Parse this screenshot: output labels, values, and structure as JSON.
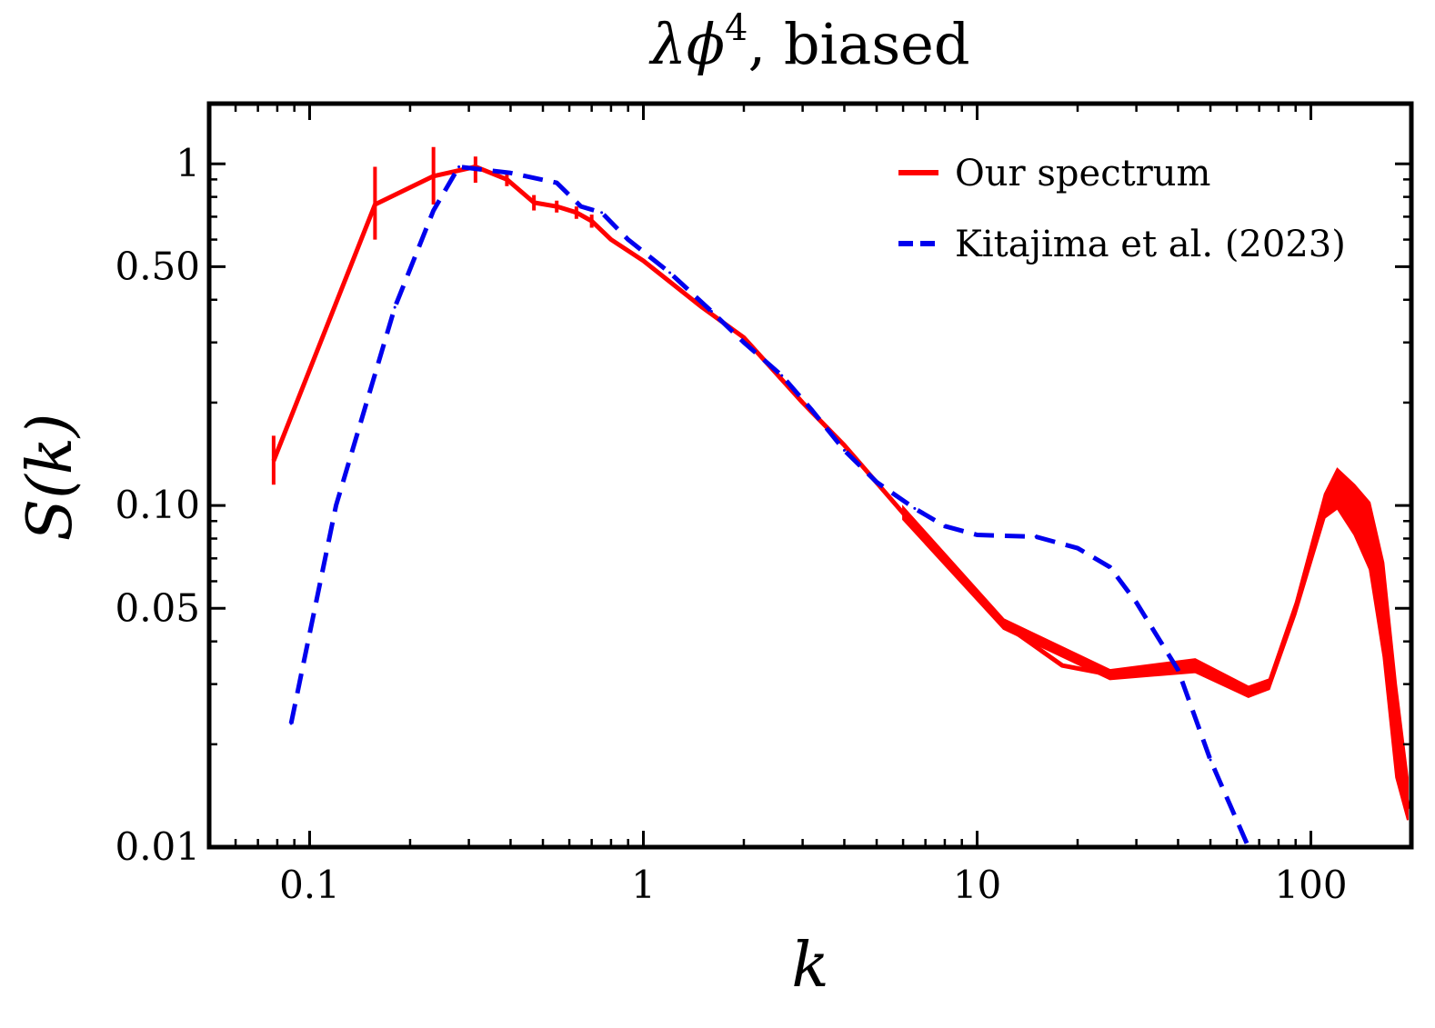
{
  "chart_data": {
    "type": "line",
    "title_math": "λϕ",
    "title_superscript": "4",
    "title_rest": ", biased",
    "xlabel": "k",
    "ylabel": "S(k)",
    "x_scale": "log",
    "y_scale": "log",
    "xlim": [
      0.05,
      200
    ],
    "ylim": [
      0.01,
      1.5
    ],
    "x_ticks": [
      {
        "value": 0.1,
        "label": "0.1"
      },
      {
        "value": 1,
        "label": "1"
      },
      {
        "value": 10,
        "label": "10"
      },
      {
        "value": 100,
        "label": "100"
      }
    ],
    "y_ticks": [
      {
        "value": 0.01,
        "label": "0.01"
      },
      {
        "value": 0.05,
        "label": "0.05"
      },
      {
        "value": 0.1,
        "label": "0.10"
      },
      {
        "value": 0.5,
        "label": "0.50"
      },
      {
        "value": 1,
        "label": "1"
      }
    ],
    "grid": false,
    "legend_position": "top-right",
    "series": [
      {
        "name": "Our spectrum",
        "color": "#ff0000",
        "style": "solid-with-error-bars",
        "points": [
          {
            "x": 0.078,
            "y": 0.135,
            "err": [
              0.115,
              0.16
            ]
          },
          {
            "x": 0.157,
            "y": 0.76,
            "err": [
              0.6,
              0.98
            ]
          },
          {
            "x": 0.235,
            "y": 0.92,
            "err": [
              0.76,
              1.12
            ]
          },
          {
            "x": 0.314,
            "y": 0.98,
            "err": [
              0.88,
              1.05
            ]
          },
          {
            "x": 0.39,
            "y": 0.9,
            "err": [
              0.86,
              0.95
            ]
          },
          {
            "x": 0.47,
            "y": 0.77,
            "err": [
              0.73,
              0.81
            ]
          },
          {
            "x": 0.55,
            "y": 0.75,
            "err": [
              0.72,
              0.78
            ]
          },
          {
            "x": 0.63,
            "y": 0.72,
            "err": [
              0.69,
              0.75
            ]
          },
          {
            "x": 0.7,
            "y": 0.68,
            "err": [
              0.65,
              0.71
            ]
          },
          {
            "x": 0.8,
            "y": 0.6
          },
          {
            "x": 1.0,
            "y": 0.52
          },
          {
            "x": 1.5,
            "y": 0.38
          },
          {
            "x": 2.0,
            "y": 0.31
          },
          {
            "x": 3.0,
            "y": 0.2
          },
          {
            "x": 4.0,
            "y": 0.15
          },
          {
            "x": 6.0,
            "y": 0.095
          },
          {
            "x": 8.0,
            "y": 0.068
          },
          {
            "x": 12.0,
            "y": 0.045
          },
          {
            "x": 18.0,
            "y": 0.034
          },
          {
            "x": 25.0,
            "y": 0.032
          },
          {
            "x": 35.0,
            "y": 0.0335
          },
          {
            "x": 45.0,
            "y": 0.034
          },
          {
            "x": 55.0,
            "y": 0.0315
          },
          {
            "x": 65.0,
            "y": 0.0285
          },
          {
            "x": 75.0,
            "y": 0.03
          },
          {
            "x": 90.0,
            "y": 0.05
          },
          {
            "x": 110.0,
            "y": 0.1
          },
          {
            "x": 120.0,
            "y": 0.112
          },
          {
            "x": 135.0,
            "y": 0.1
          },
          {
            "x": 150.0,
            "y": 0.085
          },
          {
            "x": 165.0,
            "y": 0.05
          },
          {
            "x": 180.0,
            "y": 0.022
          },
          {
            "x": 195.0,
            "y": 0.013
          }
        ],
        "band": [
          {
            "x": 6.0,
            "lo": 0.091,
            "hi": 0.099
          },
          {
            "x": 12.0,
            "lo": 0.0435,
            "hi": 0.0465
          },
          {
            "x": 25.0,
            "lo": 0.031,
            "hi": 0.033
          },
          {
            "x": 45.0,
            "lo": 0.0325,
            "hi": 0.0355
          },
          {
            "x": 65.0,
            "lo": 0.0275,
            "hi": 0.0295
          },
          {
            "x": 75.0,
            "lo": 0.029,
            "hi": 0.031
          },
          {
            "x": 90.0,
            "lo": 0.048,
            "hi": 0.052
          },
          {
            "x": 110.0,
            "lo": 0.092,
            "hi": 0.108
          },
          {
            "x": 120.0,
            "lo": 0.098,
            "hi": 0.128
          },
          {
            "x": 135.0,
            "lo": 0.082,
            "hi": 0.115
          },
          {
            "x": 150.0,
            "lo": 0.065,
            "hi": 0.102
          },
          {
            "x": 165.0,
            "lo": 0.036,
            "hi": 0.068
          },
          {
            "x": 180.0,
            "lo": 0.016,
            "hi": 0.03
          },
          {
            "x": 195.0,
            "lo": 0.012,
            "hi": 0.016
          }
        ]
      },
      {
        "name": "Kitajima et al. (2023)",
        "color": "#0000ee",
        "style": "dashed",
        "points": [
          {
            "x": 0.088,
            "y": 0.023
          },
          {
            "x": 0.12,
            "y": 0.1
          },
          {
            "x": 0.18,
            "y": 0.38
          },
          {
            "x": 0.235,
            "y": 0.73
          },
          {
            "x": 0.28,
            "y": 0.98
          },
          {
            "x": 0.4,
            "y": 0.94
          },
          {
            "x": 0.55,
            "y": 0.88
          },
          {
            "x": 0.65,
            "y": 0.75
          },
          {
            "x": 0.75,
            "y": 0.72
          },
          {
            "x": 0.9,
            "y": 0.6
          },
          {
            "x": 1.2,
            "y": 0.48
          },
          {
            "x": 1.6,
            "y": 0.37
          },
          {
            "x": 2.0,
            "y": 0.3
          },
          {
            "x": 2.6,
            "y": 0.24
          },
          {
            "x": 3.2,
            "y": 0.19
          },
          {
            "x": 4.0,
            "y": 0.145
          },
          {
            "x": 5.0,
            "y": 0.117
          },
          {
            "x": 6.5,
            "y": 0.098
          },
          {
            "x": 8.0,
            "y": 0.087
          },
          {
            "x": 10.0,
            "y": 0.082
          },
          {
            "x": 15.0,
            "y": 0.081
          },
          {
            "x": 20.0,
            "y": 0.075
          },
          {
            "x": 25.0,
            "y": 0.066
          },
          {
            "x": 30.0,
            "y": 0.052
          },
          {
            "x": 40.0,
            "y": 0.033
          },
          {
            "x": 50.0,
            "y": 0.018
          },
          {
            "x": 65.0,
            "y": 0.01
          }
        ]
      }
    ]
  }
}
